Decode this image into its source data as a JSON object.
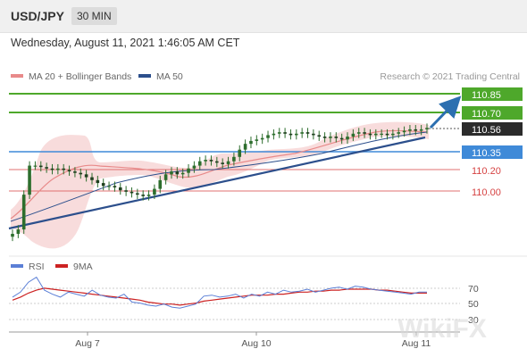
{
  "header": {
    "symbol": "USD/JPY",
    "timeframe": "30 MIN",
    "datetime": "Wednesday, August 11, 2021 1:46:05 AM CET"
  },
  "legend": {
    "bollinger": "MA 20 + Bollinger Bands",
    "ma50": "MA 50",
    "rsi": "RSI",
    "ma9": "9MA"
  },
  "credit": "Research © 2021 Trading Central",
  "watermark": "WikiFX",
  "colors": {
    "resistance": "#4ea82b",
    "pivot": "#3f8ad8",
    "support": "#d64343",
    "current": "#2b2b2b",
    "trendline": "#2c4f8c",
    "bollinger": "#f7d6d6",
    "ma20": "#e88a8a",
    "ma50": "#2c4f8c",
    "rsi_line": "#5b7fd6",
    "ma9_line": "#cc2222",
    "candle": "#2d6e2d"
  },
  "chart_data": [
    {
      "type": "line",
      "title": "USD/JPY 30 MIN",
      "x_tick_labels": [
        "Aug 7",
        "Aug 10",
        "Aug 11"
      ],
      "ylim": [
        109.75,
        110.9
      ],
      "price_levels": [
        {
          "value": 110.85,
          "label": "110.85",
          "kind": "resistance"
        },
        {
          "value": 110.7,
          "label": "110.70",
          "kind": "resistance"
        },
        {
          "value": 110.56,
          "label": "110.56",
          "kind": "current"
        },
        {
          "value": 110.35,
          "label": "110.35",
          "kind": "pivot"
        },
        {
          "value": 110.2,
          "label": "110.20",
          "kind": "support"
        },
        {
          "value": 110.0,
          "label": "110.00",
          "kind": "support"
        }
      ],
      "trendline": {
        "start": 109.73,
        "end": 110.49
      },
      "projection_arrow": {
        "from": 110.56,
        "to": 110.85
      },
      "series": [
        {
          "name": "Price",
          "values": [
            109.83,
            109.86,
            110.1,
            110.3,
            110.3,
            110.29,
            110.28,
            110.27,
            110.28,
            110.27,
            110.26,
            110.25,
            110.24,
            110.22,
            110.2,
            110.18,
            110.16,
            110.16,
            110.15,
            110.13,
            110.12,
            110.11,
            110.1,
            110.09,
            110.1,
            110.14,
            110.2,
            110.24,
            110.26,
            110.24,
            110.25,
            110.28,
            110.3,
            110.33,
            110.34,
            110.33,
            110.32,
            110.31,
            110.33,
            110.36,
            110.41,
            110.45,
            110.47,
            110.48,
            110.49,
            110.51,
            110.52,
            110.53,
            110.52,
            110.51,
            110.52,
            110.53,
            110.52,
            110.51,
            110.5,
            110.49,
            110.5,
            110.49,
            110.48,
            110.5,
            110.52,
            110.53,
            110.52,
            110.51,
            110.52,
            110.52,
            110.51,
            110.52,
            110.53,
            110.54,
            110.55,
            110.54,
            110.55,
            110.56
          ]
        },
        {
          "name": "MA 50",
          "values": [
            110.0,
            110.15,
            110.2,
            110.27,
            110.36,
            110.45,
            110.5,
            110.52,
            110.53
          ]
        }
      ]
    },
    {
      "type": "line",
      "title": "RSI",
      "yticks": [
        70,
        50,
        30
      ],
      "ylim": [
        20,
        80
      ],
      "series": [
        {
          "name": "RSI",
          "values": [
            55,
            60,
            70,
            75,
            62,
            58,
            55,
            60,
            58,
            56,
            62,
            57,
            55,
            54,
            58,
            50,
            49,
            47,
            46,
            48,
            45,
            44,
            46,
            48,
            56,
            57,
            55,
            56,
            58,
            54,
            58,
            56,
            60,
            58,
            62,
            60,
            61,
            63,
            60,
            62,
            64,
            65,
            63,
            66,
            65,
            63,
            62,
            61,
            60,
            59,
            58,
            60,
            60
          ]
        },
        {
          "name": "9MA",
          "values": [
            52,
            55,
            59,
            62,
            64,
            63,
            62,
            61,
            60,
            59,
            58,
            57,
            56,
            55,
            54,
            53,
            52,
            50,
            49,
            48,
            48,
            47,
            48,
            49,
            51,
            52,
            53,
            54,
            55,
            56,
            57,
            57,
            57,
            58,
            58,
            59,
            60,
            60,
            61,
            61,
            62,
            62,
            63,
            63,
            63,
            63,
            62,
            62,
            61,
            60,
            59,
            59,
            59
          ]
        }
      ]
    }
  ]
}
